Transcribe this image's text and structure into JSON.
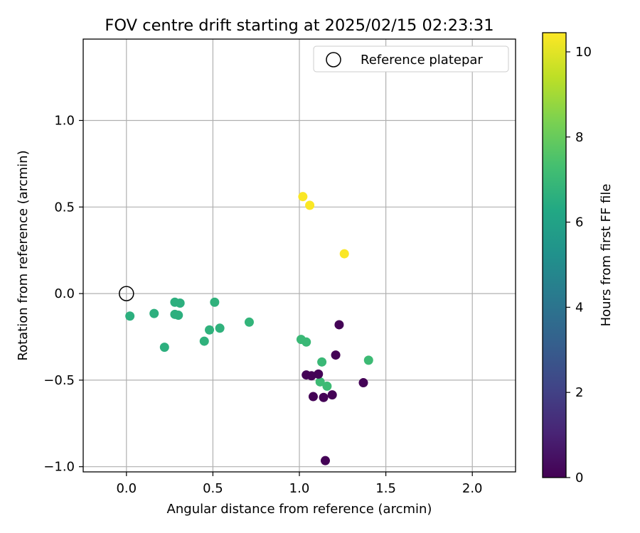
{
  "chart_data": {
    "type": "scatter",
    "title": "FOV centre drift starting at 2025/02/15 02:23:31",
    "xlabel": "Angular distance from reference (arcmin)",
    "ylabel": "Rotation from reference (arcmin)",
    "xlim": [
      -0.25,
      2.25
    ],
    "ylim": [
      -1.03,
      1.47
    ],
    "xticks": [
      0.0,
      0.5,
      1.0,
      1.5,
      2.0
    ],
    "xtick_labels": [
      "0.0",
      "0.5",
      "1.0",
      "1.5",
      "2.0"
    ],
    "yticks": [
      -1.0,
      -0.5,
      0.0,
      0.5,
      1.0
    ],
    "ytick_labels": [
      "−1.0",
      "−0.5",
      "0.0",
      "0.5",
      "1.0"
    ],
    "grid": true,
    "legend": {
      "position": "top-right",
      "entries": [
        {
          "label": "Reference platepar",
          "marker": "open-circle"
        }
      ]
    },
    "reference_point": {
      "x": 0.0,
      "y": 0.0
    },
    "colorbar": {
      "label": "Hours from first FF file",
      "range": [
        0,
        10.45
      ],
      "ticks": [
        0,
        2,
        4,
        6,
        8,
        10
      ],
      "tick_labels": [
        "0",
        "2",
        "4",
        "6",
        "8",
        "10"
      ],
      "colormap": "viridis"
    },
    "points": [
      {
        "x": 1.02,
        "y": 0.56,
        "c": 10.4
      },
      {
        "x": 1.06,
        "y": 0.51,
        "c": 10.4
      },
      {
        "x": 1.26,
        "y": 0.23,
        "c": 10.4
      },
      {
        "x": 0.02,
        "y": -0.13,
        "c": 6.6
      },
      {
        "x": 0.16,
        "y": -0.115,
        "c": 6.6
      },
      {
        "x": 0.22,
        "y": -0.31,
        "c": 6.6
      },
      {
        "x": 0.28,
        "y": -0.05,
        "c": 6.6
      },
      {
        "x": 0.31,
        "y": -0.055,
        "c": 6.6
      },
      {
        "x": 0.28,
        "y": -0.12,
        "c": 6.6
      },
      {
        "x": 0.3,
        "y": -0.125,
        "c": 6.6
      },
      {
        "x": 0.45,
        "y": -0.275,
        "c": 6.7
      },
      {
        "x": 0.48,
        "y": -0.21,
        "c": 6.7
      },
      {
        "x": 0.51,
        "y": -0.05,
        "c": 6.7
      },
      {
        "x": 0.54,
        "y": -0.2,
        "c": 6.7
      },
      {
        "x": 0.71,
        "y": -0.165,
        "c": 6.8
      },
      {
        "x": 1.01,
        "y": -0.265,
        "c": 7.0
      },
      {
        "x": 1.04,
        "y": -0.28,
        "c": 7.0
      },
      {
        "x": 1.13,
        "y": -0.395,
        "c": 7.0
      },
      {
        "x": 1.12,
        "y": -0.51,
        "c": 7.1
      },
      {
        "x": 1.16,
        "y": -0.535,
        "c": 7.1
      },
      {
        "x": 1.4,
        "y": -0.385,
        "c": 7.1
      },
      {
        "x": 1.23,
        "y": -0.18,
        "c": 0.05
      },
      {
        "x": 1.21,
        "y": -0.355,
        "c": 0.05
      },
      {
        "x": 1.04,
        "y": -0.47,
        "c": 0.05
      },
      {
        "x": 1.07,
        "y": -0.475,
        "c": 0.05
      },
      {
        "x": 1.11,
        "y": -0.465,
        "c": 0.05
      },
      {
        "x": 1.08,
        "y": -0.595,
        "c": 0.05
      },
      {
        "x": 1.14,
        "y": -0.6,
        "c": 0.05
      },
      {
        "x": 1.19,
        "y": -0.585,
        "c": 0.05
      },
      {
        "x": 1.37,
        "y": -0.515,
        "c": 0.05
      },
      {
        "x": 1.15,
        "y": -0.965,
        "c": 0.05
      }
    ]
  }
}
